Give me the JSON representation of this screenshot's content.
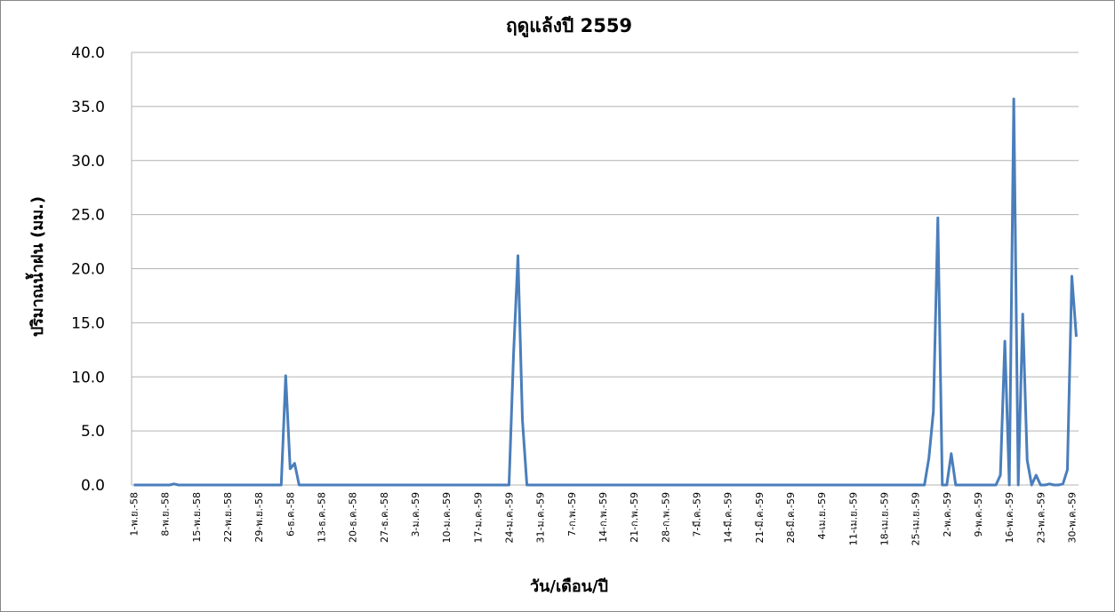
{
  "chart_data": {
    "type": "line",
    "title": "ฤดูแล้งปี 2559",
    "x_label": "วัน/เดือน/ปี",
    "y_label": "ปริมาณน้ำฝน (มม.)",
    "color": "#4a7ebb",
    "grid": true,
    "ylim": [
      0,
      40
    ],
    "yticks": [
      {
        "value": 0,
        "label": "0.0"
      },
      {
        "value": 5,
        "label": "5.0"
      },
      {
        "value": 10,
        "label": "10.0"
      },
      {
        "value": 15,
        "label": "15.0"
      },
      {
        "value": 20,
        "label": "20.0"
      },
      {
        "value": 25,
        "label": "25.0"
      },
      {
        "value": 30,
        "label": "30.0"
      },
      {
        "value": 35,
        "label": "35.0"
      },
      {
        "value": 40,
        "label": "40.0"
      }
    ],
    "categories": [
      "1-พ.ย.-58",
      null,
      null,
      null,
      null,
      null,
      null,
      "8-พ.ย.-58",
      null,
      null,
      null,
      null,
      null,
      null,
      "15-พ.ย.-58",
      null,
      null,
      null,
      null,
      null,
      null,
      "22-พ.ย.-58",
      null,
      null,
      null,
      null,
      null,
      null,
      "29-พ.ย.-58",
      null,
      null,
      null,
      null,
      null,
      null,
      "6-ธ.ค.-58",
      null,
      null,
      null,
      null,
      null,
      null,
      "13-ธ.ค.-58",
      null,
      null,
      null,
      null,
      null,
      null,
      "20-ธ.ค.-58",
      null,
      null,
      null,
      null,
      null,
      null,
      "27-ธ.ค.-58",
      null,
      null,
      null,
      null,
      null,
      null,
      "3-ม.ค.-59",
      null,
      null,
      null,
      null,
      null,
      null,
      "10-ม.ค.-59",
      null,
      null,
      null,
      null,
      null,
      null,
      "17-ม.ค.-59",
      null,
      null,
      null,
      null,
      null,
      null,
      "24-ม.ค.-59",
      null,
      null,
      null,
      null,
      null,
      null,
      "31-ม.ค.-59",
      null,
      null,
      null,
      null,
      null,
      null,
      "7-ก.พ.-59",
      null,
      null,
      null,
      null,
      null,
      null,
      "14-ก.พ.-59",
      null,
      null,
      null,
      null,
      null,
      null,
      "21-ก.พ.-59",
      null,
      null,
      null,
      null,
      null,
      null,
      "28-ก.พ.-59",
      null,
      null,
      null,
      null,
      null,
      null,
      "7-มี.ค.-59",
      null,
      null,
      null,
      null,
      null,
      null,
      "14-มี.ค.-59",
      null,
      null,
      null,
      null,
      null,
      null,
      "21-มี.ค.-59",
      null,
      null,
      null,
      null,
      null,
      null,
      "28-มี.ค.-59",
      null,
      null,
      null,
      null,
      null,
      null,
      "4-เม.ย.-59",
      null,
      null,
      null,
      null,
      null,
      null,
      "11-เม.ย.-59",
      null,
      null,
      null,
      null,
      null,
      null,
      "18-เม.ย.-59",
      null,
      null,
      null,
      null,
      null,
      null,
      "25-เม.ย.-59",
      null,
      null,
      null,
      null,
      null,
      null,
      "2-พ.ค.-59",
      null,
      null,
      null,
      null,
      null,
      null,
      "9-พ.ค.-59",
      null,
      null,
      null,
      null,
      null,
      null,
      "16-พ.ค.-59",
      null,
      null,
      null,
      null,
      null,
      null,
      "23-พ.ค.-59",
      null,
      null,
      null,
      null,
      null,
      null,
      "30-พ.ค.-59",
      null
    ],
    "values": [
      0,
      0,
      0,
      0,
      0,
      0,
      0,
      0,
      0,
      0.1,
      0,
      0,
      0,
      0,
      0,
      0,
      0,
      0,
      0,
      0,
      0,
      0,
      0,
      0,
      0,
      0,
      0,
      0,
      0,
      0,
      0,
      0,
      0,
      0,
      10.1,
      1.5,
      2.0,
      0,
      0,
      0,
      0,
      0,
      0,
      0,
      0,
      0,
      0,
      0,
      0,
      0,
      0,
      0,
      0,
      0,
      0,
      0,
      0,
      0,
      0,
      0,
      0,
      0,
      0,
      0,
      0,
      0,
      0,
      0,
      0,
      0,
      0,
      0,
      0,
      0,
      0,
      0,
      0,
      0,
      0,
      0,
      0,
      0,
      0,
      0,
      0,
      12,
      21.2,
      6,
      0,
      0,
      0,
      0,
      0,
      0,
      0,
      0,
      0,
      0,
      0,
      0,
      0,
      0,
      0,
      0,
      0,
      0,
      0,
      0,
      0,
      0,
      0,
      0,
      0,
      0,
      0,
      0,
      0,
      0,
      0,
      0,
      0,
      0,
      0,
      0,
      0,
      0,
      0,
      0,
      0,
      0,
      0,
      0,
      0,
      0,
      0,
      0,
      0,
      0,
      0,
      0,
      0,
      0,
      0,
      0,
      0,
      0,
      0,
      0,
      0,
      0,
      0,
      0,
      0,
      0,
      0,
      0,
      0,
      0,
      0,
      0,
      0,
      0,
      0,
      0,
      0,
      0,
      0,
      0,
      0,
      0,
      0,
      0,
      0,
      0,
      0,
      0,
      0,
      0,
      2.5,
      6.8,
      24.7,
      0,
      0,
      2.9,
      0,
      0,
      0,
      0,
      0,
      0,
      0,
      0,
      0,
      0,
      0.9,
      13.3,
      0,
      35.7,
      0,
      15.8,
      2.3,
      0,
      0.9,
      0,
      0,
      0.1,
      0,
      0,
      0.1,
      1.4,
      19.3,
      13.7
    ]
  }
}
